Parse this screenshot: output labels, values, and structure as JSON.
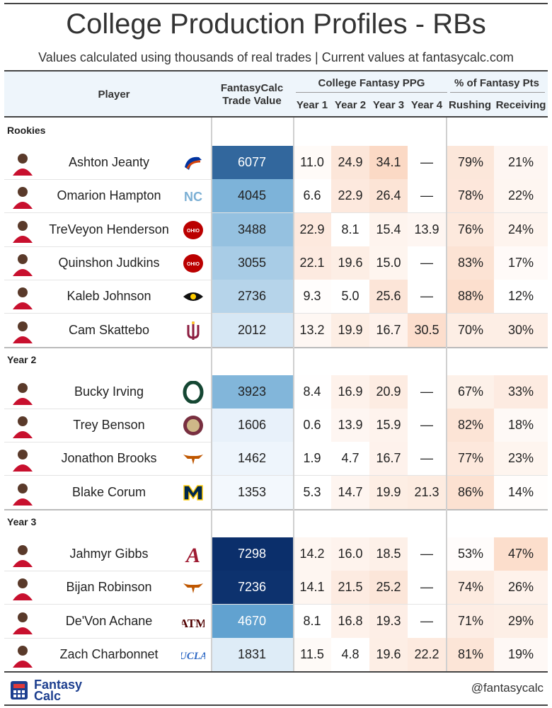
{
  "title": "College Production Profiles - RBs",
  "subtitle": "Values calculated using thousands of real trades | Current values at fantasycalc.com",
  "header": {
    "player": "Player",
    "trade_value": [
      "FantasyCalc",
      "Trade Value"
    ],
    "ppg_group": "College Fantasy PPG",
    "years": [
      "Year 1",
      "Year 2",
      "Year 3",
      "Year 4"
    ],
    "pct_group": "% of Fantasy Pts",
    "rushing": "Rushing",
    "receiving": "Receiving"
  },
  "colors": {
    "value_scale_low": "#f3f8fd",
    "value_scale_high": "#0b2f6b",
    "ppg_scale_high": "#fbd9c5",
    "header_bg": "#eef5fb"
  },
  "chart_data": {
    "type": "table",
    "value_range": [
      1353,
      7298
    ],
    "sections": [
      {
        "name": "Rookies",
        "players": [
          {
            "name": "Ashton Jeanty",
            "school_icon": "boise-state-logo-icon",
            "value": 6077,
            "ppg": [
              "11.0",
              "24.9",
              "34.1",
              "—"
            ],
            "rushing": "79%",
            "receiving": "21%"
          },
          {
            "name": "Omarion Hampton",
            "school_icon": "north-carolina-logo-icon",
            "value": 4045,
            "ppg": [
              "6.6",
              "22.9",
              "26.4",
              "—"
            ],
            "rushing": "78%",
            "receiving": "22%"
          },
          {
            "name": "TreVeyon Henderson",
            "school_icon": "ohio-state-logo-icon",
            "value": 3488,
            "ppg": [
              "22.9",
              "8.1",
              "15.4",
              "13.9"
            ],
            "rushing": "76%",
            "receiving": "24%"
          },
          {
            "name": "Quinshon Judkins",
            "school_icon": "ohio-state-logo-icon",
            "value": 3055,
            "ppg": [
              "22.1",
              "19.6",
              "15.0",
              "—"
            ],
            "rushing": "83%",
            "receiving": "17%"
          },
          {
            "name": "Kaleb Johnson",
            "school_icon": "iowa-logo-icon",
            "value": 2736,
            "ppg": [
              "9.3",
              "5.0",
              "25.6",
              "—"
            ],
            "rushing": "88%",
            "receiving": "12%"
          },
          {
            "name": "Cam Skattebo",
            "school_icon": "arizona-state-logo-icon",
            "value": 2012,
            "ppg": [
              "13.2",
              "19.9",
              "16.7",
              "30.5"
            ],
            "rushing": "70%",
            "receiving": "30%"
          }
        ]
      },
      {
        "name": "Year 2",
        "players": [
          {
            "name": "Bucky Irving",
            "school_icon": "oregon-logo-icon",
            "value": 3923,
            "ppg": [
              "8.4",
              "16.9",
              "20.9",
              "—"
            ],
            "rushing": "67%",
            "receiving": "33%"
          },
          {
            "name": "Trey Benson",
            "school_icon": "florida-state-logo-icon",
            "value": 1606,
            "ppg": [
              "0.6",
              "13.9",
              "15.9",
              "—"
            ],
            "rushing": "82%",
            "receiving": "18%"
          },
          {
            "name": "Jonathon Brooks",
            "school_icon": "texas-logo-icon",
            "value": 1462,
            "ppg": [
              "1.9",
              "4.7",
              "16.7",
              "—"
            ],
            "rushing": "77%",
            "receiving": "23%"
          },
          {
            "name": "Blake Corum",
            "school_icon": "michigan-logo-icon",
            "value": 1353,
            "ppg": [
              "5.3",
              "14.7",
              "19.9",
              "21.3"
            ],
            "rushing": "86%",
            "receiving": "14%"
          }
        ]
      },
      {
        "name": "Year 3",
        "players": [
          {
            "name": "Jahmyr Gibbs",
            "school_icon": "alabama-logo-icon",
            "value": 7298,
            "ppg": [
              "14.2",
              "16.0",
              "18.5",
              "—"
            ],
            "rushing": "53%",
            "receiving": "47%"
          },
          {
            "name": "Bijan Robinson",
            "school_icon": "texas-logo-icon",
            "value": 7236,
            "ppg": [
              "14.1",
              "21.5",
              "25.2",
              "—"
            ],
            "rushing": "74%",
            "receiving": "26%"
          },
          {
            "name": "De'Von Achane",
            "school_icon": "texas-am-logo-icon",
            "value": 4670,
            "ppg": [
              "8.1",
              "16.8",
              "19.3",
              "—"
            ],
            "rushing": "71%",
            "receiving": "29%"
          },
          {
            "name": "Zach Charbonnet",
            "school_icon": "ucla-logo-icon",
            "value": 1831,
            "ppg": [
              "11.5",
              "4.8",
              "19.6",
              "22.2"
            ],
            "rushing": "81%",
            "receiving": "19%"
          }
        ]
      }
    ]
  },
  "footer": {
    "brand_line1": "Fantasy",
    "brand_line2": "Calc",
    "handle": "@fantasycalc"
  }
}
